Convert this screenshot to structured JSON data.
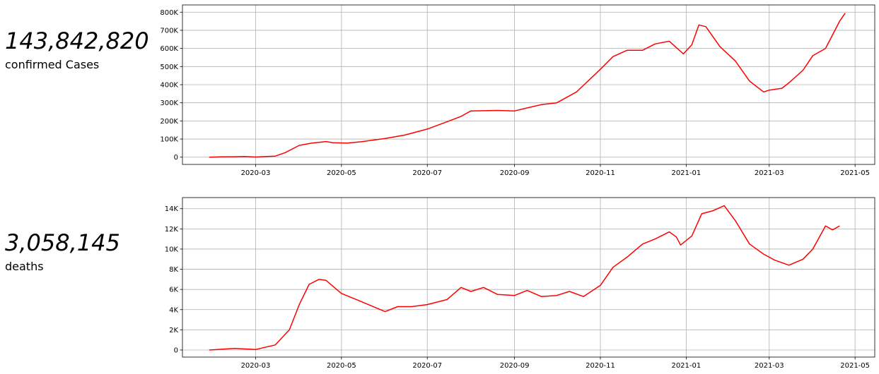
{
  "stats": {
    "cases": {
      "value": "143,842,820",
      "label": "confirmed Cases"
    },
    "deaths": {
      "value": "3,058,145",
      "label": "deaths"
    }
  },
  "line_color": "#ff0000",
  "chart_data": [
    {
      "type": "line",
      "title": "",
      "xlabel": "",
      "ylabel": "",
      "grid": true,
      "x_ticks": [
        "2020-03",
        "2020-05",
        "2020-07",
        "2020-09",
        "2020-11",
        "2021-01",
        "2021-03",
        "2021-05"
      ],
      "y_ticks": [
        0,
        100000,
        200000,
        300000,
        400000,
        500000,
        600000,
        700000,
        800000
      ],
      "y_tick_labels": [
        "0",
        "100K",
        "200K",
        "300K",
        "400K",
        "500K",
        "600K",
        "700K",
        "800K"
      ],
      "xlim": [
        "2020-01-09",
        "2021-05-15"
      ],
      "ylim": [
        -40000,
        840000
      ],
      "series": [
        {
          "values": [
            [
              "2020-01-28",
              0
            ],
            [
              "2020-02-05",
              2000
            ],
            [
              "2020-02-15",
              2500
            ],
            [
              "2020-02-22",
              3500
            ],
            [
              "2020-03-01",
              1000
            ],
            [
              "2020-03-15",
              6000
            ],
            [
              "2020-03-22",
              25000
            ],
            [
              "2020-04-01",
              65000
            ],
            [
              "2020-04-10",
              78000
            ],
            [
              "2020-04-20",
              86000
            ],
            [
              "2020-04-25",
              80000
            ],
            [
              "2020-05-05",
              78000
            ],
            [
              "2020-05-15",
              85000
            ],
            [
              "2020-06-01",
              103000
            ],
            [
              "2020-06-15",
              122000
            ],
            [
              "2020-07-01",
              155000
            ],
            [
              "2020-07-15",
              195000
            ],
            [
              "2020-07-25",
              225000
            ],
            [
              "2020-08-01",
              255000
            ],
            [
              "2020-08-20",
              258000
            ],
            [
              "2020-09-01",
              255000
            ],
            [
              "2020-09-10",
              272000
            ],
            [
              "2020-09-20",
              290000
            ],
            [
              "2020-10-01",
              300000
            ],
            [
              "2020-10-15",
              360000
            ],
            [
              "2020-11-01",
              485000
            ],
            [
              "2020-11-10",
              555000
            ],
            [
              "2020-11-20",
              590000
            ],
            [
              "2020-12-01",
              590000
            ],
            [
              "2020-12-10",
              625000
            ],
            [
              "2020-12-20",
              640000
            ],
            [
              "2020-12-25",
              605000
            ],
            [
              "2020-12-30",
              570000
            ],
            [
              "2021-01-05",
              620000
            ],
            [
              "2021-01-10",
              730000
            ],
            [
              "2021-01-15",
              720000
            ],
            [
              "2021-01-25",
              610000
            ],
            [
              "2021-02-05",
              530000
            ],
            [
              "2021-02-15",
              420000
            ],
            [
              "2021-02-25",
              360000
            ],
            [
              "2021-03-01",
              370000
            ],
            [
              "2021-03-10",
              380000
            ],
            [
              "2021-03-15",
              410000
            ],
            [
              "2021-03-25",
              480000
            ],
            [
              "2021-04-01",
              560000
            ],
            [
              "2021-04-10",
              600000
            ],
            [
              "2021-04-20",
              750000
            ],
            [
              "2021-04-24",
              795000
            ]
          ]
        }
      ]
    },
    {
      "type": "line",
      "title": "",
      "xlabel": "",
      "ylabel": "",
      "grid": true,
      "x_ticks": [
        "2020-03",
        "2020-05",
        "2020-07",
        "2020-09",
        "2020-11",
        "2021-01",
        "2021-03",
        "2021-05"
      ],
      "y_ticks": [
        0,
        2000,
        4000,
        6000,
        8000,
        10000,
        12000,
        14000
      ],
      "y_tick_labels": [
        "0",
        "2K",
        "4K",
        "6K",
        "8K",
        "10K",
        "12K",
        "14K"
      ],
      "xlim": [
        "2020-01-09",
        "2021-05-15"
      ],
      "ylim": [
        -700,
        15100
      ],
      "series": [
        {
          "values": [
            [
              "2020-01-28",
              0
            ],
            [
              "2020-02-15",
              150
            ],
            [
              "2020-03-01",
              50
            ],
            [
              "2020-03-15",
              500
            ],
            [
              "2020-03-25",
              2000
            ],
            [
              "2020-04-01",
              4500
            ],
            [
              "2020-04-08",
              6500
            ],
            [
              "2020-04-15",
              7000
            ],
            [
              "2020-04-20",
              6900
            ],
            [
              "2020-05-01",
              5600
            ],
            [
              "2020-05-15",
              4800
            ],
            [
              "2020-06-01",
              3800
            ],
            [
              "2020-06-10",
              4300
            ],
            [
              "2020-06-20",
              4300
            ],
            [
              "2020-07-01",
              4500
            ],
            [
              "2020-07-15",
              5000
            ],
            [
              "2020-07-25",
              6200
            ],
            [
              "2020-08-01",
              5800
            ],
            [
              "2020-08-10",
              6200
            ],
            [
              "2020-08-20",
              5500
            ],
            [
              "2020-09-01",
              5400
            ],
            [
              "2020-09-10",
              5900
            ],
            [
              "2020-09-20",
              5300
            ],
            [
              "2020-10-01",
              5400
            ],
            [
              "2020-10-10",
              5800
            ],
            [
              "2020-10-20",
              5300
            ],
            [
              "2020-11-01",
              6400
            ],
            [
              "2020-11-10",
              8200
            ],
            [
              "2020-11-20",
              9200
            ],
            [
              "2020-12-01",
              10500
            ],
            [
              "2020-12-10",
              11000
            ],
            [
              "2020-12-20",
              11700
            ],
            [
              "2020-12-25",
              11200
            ],
            [
              "2020-12-28",
              10400
            ],
            [
              "2021-01-05",
              11300
            ],
            [
              "2021-01-12",
              13500
            ],
            [
              "2021-01-20",
              13800
            ],
            [
              "2021-01-28",
              14300
            ],
            [
              "2021-02-05",
              12800
            ],
            [
              "2021-02-15",
              10500
            ],
            [
              "2021-02-25",
              9500
            ],
            [
              "2021-03-05",
              8900
            ],
            [
              "2021-03-15",
              8400
            ],
            [
              "2021-03-25",
              9000
            ],
            [
              "2021-04-01",
              10000
            ],
            [
              "2021-04-10",
              12300
            ],
            [
              "2021-04-15",
              11900
            ],
            [
              "2021-04-20",
              12300
            ]
          ]
        }
      ]
    }
  ]
}
